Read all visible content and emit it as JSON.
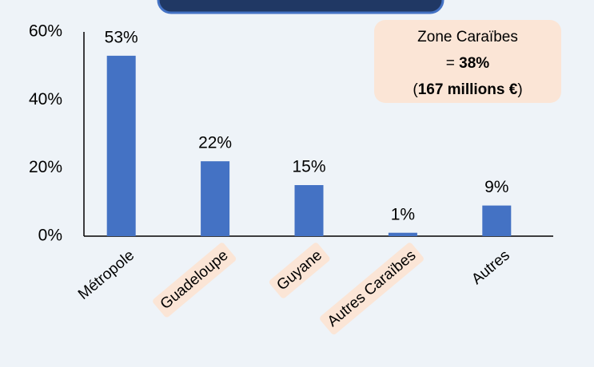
{
  "chart_data": {
    "type": "bar",
    "categories": [
      "Métropole",
      "Guadeloupe",
      "Guyane",
      "Autres Caraïbes",
      "Autres"
    ],
    "highlight": [
      false,
      true,
      true,
      true,
      false
    ],
    "values": [
      53,
      22,
      15,
      1,
      9
    ],
    "value_labels": [
      "53%",
      "22%",
      "15%",
      "1%",
      "9%"
    ],
    "color": "#4472c4",
    "ylim": [
      0,
      60
    ],
    "yticks": [
      {
        "value": 0,
        "label": "0%"
      },
      {
        "value": 20,
        "label": "20%"
      },
      {
        "value": 40,
        "label": "40%"
      },
      {
        "value": 60,
        "label": "60%"
      }
    ],
    "annotation": {
      "lines": [
        [
          {
            "text": "Zone Caraïbes",
            "bold": false
          }
        ],
        [
          {
            "text": "= ",
            "bold": false
          },
          {
            "text": "38%",
            "bold": true
          }
        ],
        [
          {
            "text": "(",
            "bold": false
          },
          {
            "text": "167 millions €",
            "bold": true
          },
          {
            "text": ")",
            "bold": false
          }
        ]
      ]
    }
  }
}
